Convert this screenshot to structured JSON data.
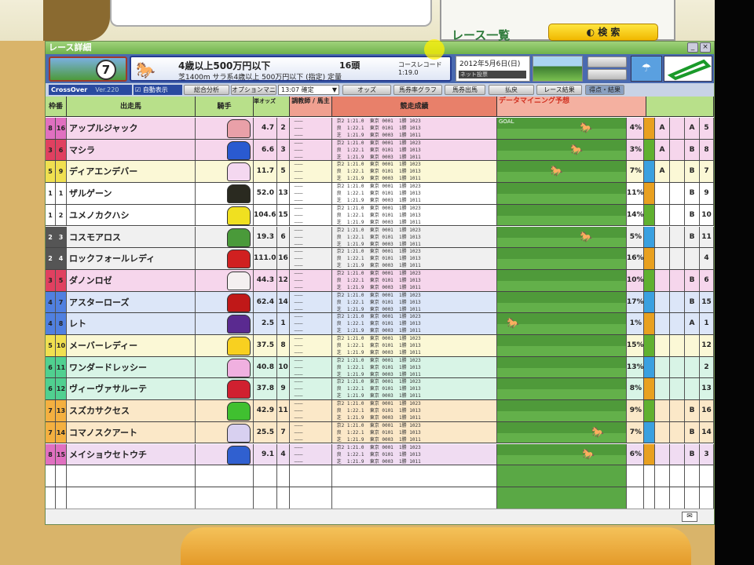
{
  "app": {
    "race_list_label": "レース一覧",
    "search_label": "検 索"
  },
  "window": {
    "title": "レース詳細"
  },
  "race": {
    "number": "7",
    "title": "4歳以上500万円以下",
    "subtitle": "芝1400m サラ系4歳以上 500万円以下 (指定) 定量",
    "heads": "16頭",
    "course_record": "コースレコード 1:19.0",
    "date": "2012年5月6日(日)",
    "date_sub": "ネット投票"
  },
  "toolbar": {
    "brand": "CrossOver",
    "version": "Ver.220",
    "auto_display": "自動表示",
    "auto_display_checked": true,
    "buttons": [
      "総合分析",
      "オプションマニュアル",
      "オッズ",
      "馬券率グラフ",
      "馬券出馬",
      "払戻",
      "レース結果",
      "得点・結果"
    ],
    "time_select": "13:07 確定"
  },
  "columns": {
    "waku": "枠番",
    "horse": "出走馬",
    "jockey": "騎手",
    "odds": "単オッズ",
    "trainer": "調教師 / 馬主",
    "past": "競走成績",
    "sim": "データマイニング予想",
    "goal": "GOAL"
  },
  "colors": {
    "accent": "#2a4aa0",
    "title_bar": "#7ab85a",
    "sim_track": "#5aa845"
  },
  "rows": [
    {
      "waku": "8",
      "num": "16",
      "name": "アップルジャック",
      "odds": "4.7",
      "pop": "2",
      "pct": "4%",
      "m1": "A",
      "m3": "A",
      "rank": "5",
      "bg": "#f6d6ec",
      "wk": "#e070c0",
      "silk": "#e9a0a8",
      "horse": 0.7
    },
    {
      "waku": "3",
      "num": "6",
      "name": "マシラ",
      "odds": "6.6",
      "pop": "3",
      "pct": "3%",
      "m1": "A",
      "m3": "B",
      "rank": "8",
      "bg": "#f6d6ec",
      "wk": "#e04060",
      "silk": "#2a5ad0",
      "horse": 0.62
    },
    {
      "waku": "5",
      "num": "9",
      "name": "ディアエンデバー",
      "odds": "11.7",
      "pop": "5",
      "pct": "7%",
      "m1": "A",
      "m3": "B",
      "rank": "7",
      "bg": "#fbf8d6",
      "wk": "#f0e050",
      "silk": "#f4d8f0",
      "horse": 0.45
    },
    {
      "waku": "1",
      "num": "1",
      "name": "ザルゲーン",
      "odds": "52.0",
      "pop": "13",
      "pct": "11%",
      "m1": "",
      "m3": "B",
      "rank": "9",
      "bg": "#ffffff",
      "wk": "#ffffff",
      "silk": "#2a2a20",
      "horse": null
    },
    {
      "waku": "1",
      "num": "2",
      "name": "ユメノカクハシ",
      "odds": "104.6",
      "pop": "15",
      "pct": "14%",
      "m1": "",
      "m3": "B",
      "rank": "10",
      "bg": "#ffffff",
      "wk": "#ffffff",
      "silk": "#f0e020",
      "horse": null
    },
    {
      "waku": "2",
      "num": "3",
      "name": "コスモアロス",
      "odds": "19.3",
      "pop": "6",
      "pct": "5%",
      "m1": "",
      "m3": "B",
      "rank": "11",
      "bg": "#f0f0f0",
      "wk": "#555555",
      "silk": "#4a9a3a",
      "horse": 0.7
    },
    {
      "waku": "2",
      "num": "4",
      "name": "ロックフォールレディ",
      "odds": "111.0",
      "pop": "16",
      "pct": "16%",
      "m1": "",
      "m3": "",
      "rank": "4",
      "bg": "#f0f0f0",
      "wk": "#555555",
      "silk": "#d02020",
      "horse": null
    },
    {
      "waku": "3",
      "num": "5",
      "name": "ダノンロゼ",
      "odds": "44.3",
      "pop": "12",
      "pct": "10%",
      "m1": "",
      "m3": "B",
      "rank": "6",
      "bg": "#f6d6ec",
      "wk": "#e04060",
      "silk": "#f4f0f0",
      "horse": null
    },
    {
      "waku": "4",
      "num": "7",
      "name": "アスターローズ",
      "odds": "62.4",
      "pop": "14",
      "pct": "17%",
      "m1": "",
      "m3": "B",
      "rank": "15",
      "bg": "#dce6f8",
      "wk": "#5080e0",
      "silk": "#c01818",
      "horse": null
    },
    {
      "waku": "4",
      "num": "8",
      "name": "レト",
      "odds": "2.5",
      "pop": "1",
      "pct": "1%",
      "m1": "",
      "m3": "A",
      "rank": "1",
      "bg": "#dce6f8",
      "wk": "#5080e0",
      "silk": "#5a2a90",
      "horse": 0.08
    },
    {
      "waku": "5",
      "num": "10",
      "name": "メーバーレディー",
      "odds": "37.5",
      "pop": "8",
      "pct": "15%",
      "m1": "",
      "m3": "",
      "rank": "12",
      "bg": "#fbf8d6",
      "wk": "#f0e050",
      "silk": "#f8d020",
      "horse": null
    },
    {
      "waku": "6",
      "num": "11",
      "name": "ワンダードレッシー",
      "odds": "40.8",
      "pop": "10",
      "pct": "13%",
      "m1": "",
      "m3": "",
      "rank": "2",
      "bg": "#d8f4e6",
      "wk": "#50d090",
      "silk": "#f0b0e0",
      "horse": null
    },
    {
      "waku": "6",
      "num": "12",
      "name": "ヴィーヴァサルーテ",
      "odds": "37.8",
      "pop": "9",
      "pct": "8%",
      "m1": "",
      "m3": "",
      "rank": "13",
      "bg": "#d8f4e6",
      "wk": "#50d090",
      "silk": "#d02030",
      "horse": null
    },
    {
      "waku": "7",
      "num": "13",
      "name": "スズカサクセス",
      "odds": "42.9",
      "pop": "11",
      "pct": "9%",
      "m1": "",
      "m3": "B",
      "rank": "16",
      "bg": "#fbe8c8",
      "wk": "#f4b040",
      "silk": "#40c030",
      "horse": null
    },
    {
      "waku": "7",
      "num": "14",
      "name": "コマノスクアート",
      "odds": "25.5",
      "pop": "7",
      "pct": "7%",
      "m1": "",
      "m3": "B",
      "rank": "14",
      "bg": "#fbe8c8",
      "wk": "#f4b040",
      "silk": "#d8d0f0",
      "horse": 0.8
    },
    {
      "waku": "8",
      "num": "15",
      "name": "メイショウセトウチ",
      "odds": "9.1",
      "pop": "4",
      "pct": "6%",
      "m1": "",
      "m3": "B",
      "rank": "3",
      "bg": "#f0dcf2",
      "wk": "#e070c0",
      "silk": "#3060d0",
      "horse": 0.72
    }
  ]
}
